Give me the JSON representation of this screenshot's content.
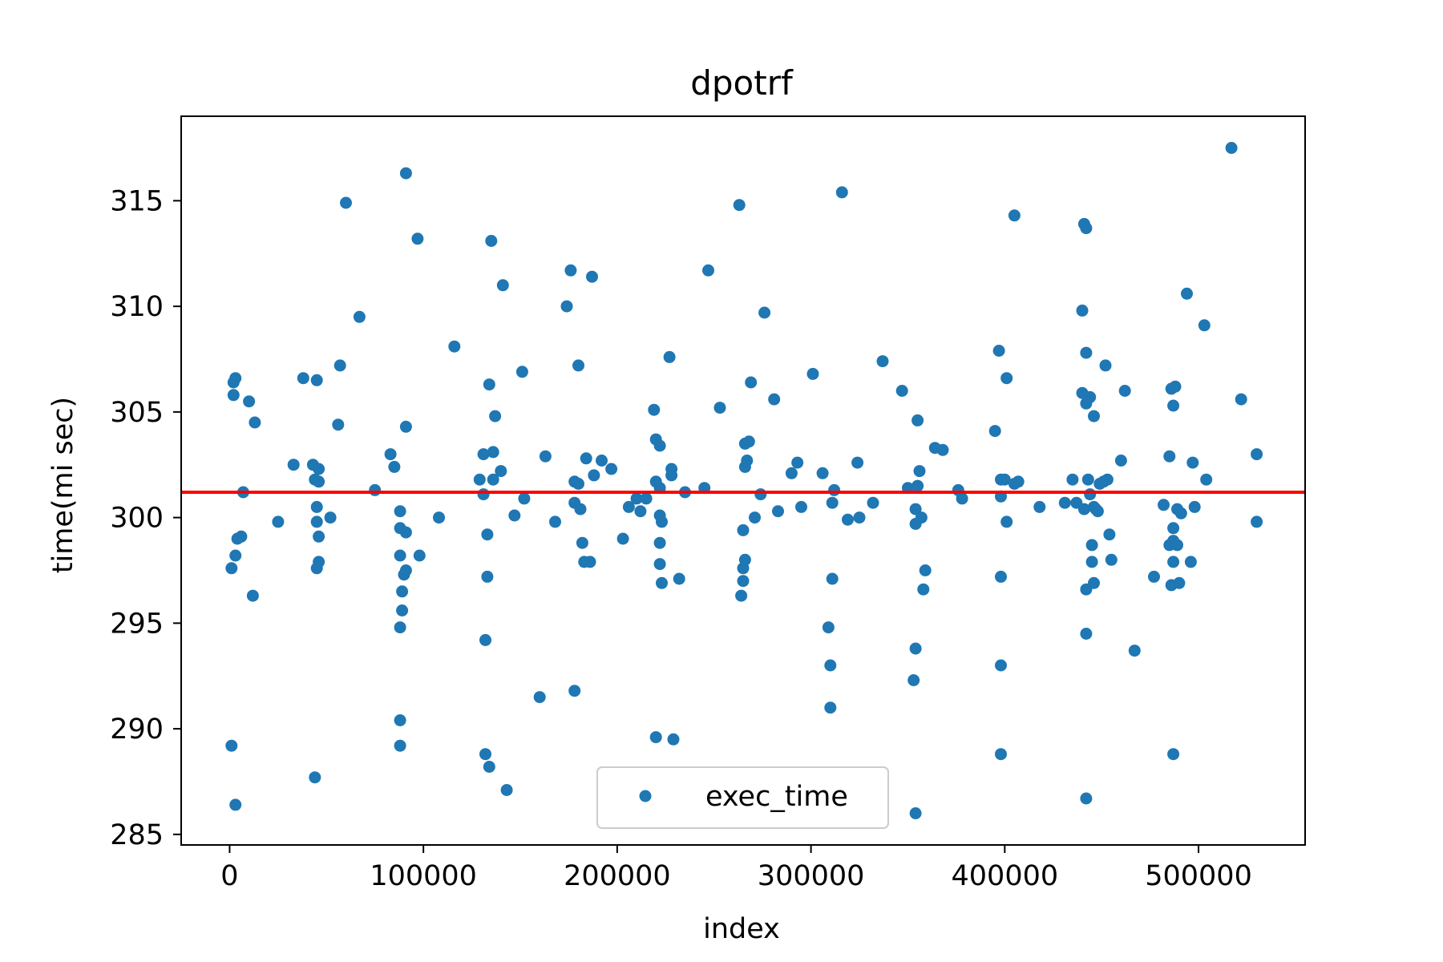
{
  "chart_data": {
    "type": "scatter",
    "title": "dpotrf",
    "xlabel": "index",
    "ylabel": "time(mi sec)",
    "xlim": [
      -25000,
      555000
    ],
    "ylim": [
      284.5,
      319
    ],
    "xticks": [
      0,
      100000,
      200000,
      300000,
      400000,
      500000
    ],
    "xtick_labels": [
      "0",
      "100000",
      "200000",
      "300000",
      "400000",
      "500000"
    ],
    "yticks": [
      285,
      290,
      295,
      300,
      305,
      310,
      315
    ],
    "ytick_labels": [
      "285",
      "290",
      "295",
      "300",
      "305",
      "310",
      "315"
    ],
    "grid": false,
    "legend": {
      "placement": "lower-center",
      "entries": [
        "exec_time"
      ]
    },
    "colors": {
      "points": "#1f77b4",
      "mean_line": "#ff0000"
    },
    "mean_line": {
      "y": 301.2
    },
    "series": [
      {
        "name": "exec_time",
        "points": [
          [
            1000,
            297.6
          ],
          [
            1000,
            289.2
          ],
          [
            2000,
            306.4
          ],
          [
            2000,
            305.8
          ],
          [
            3000,
            306.6
          ],
          [
            3000,
            298.2
          ],
          [
            3000,
            286.4
          ],
          [
            4000,
            299.0
          ],
          [
            6000,
            299.1
          ],
          [
            7000,
            301.2
          ],
          [
            10000,
            305.5
          ],
          [
            12000,
            296.3
          ],
          [
            13000,
            304.5
          ],
          [
            25000,
            299.8
          ],
          [
            33000,
            302.5
          ],
          [
            38000,
            306.6
          ],
          [
            43000,
            302.5
          ],
          [
            44000,
            301.8
          ],
          [
            44000,
            287.7
          ],
          [
            45000,
            306.5
          ],
          [
            45000,
            300.5
          ],
          [
            45000,
            299.8
          ],
          [
            45000,
            297.6
          ],
          [
            46000,
            301.7
          ],
          [
            46000,
            297.9
          ],
          [
            46000,
            299.1
          ],
          [
            46000,
            302.3
          ],
          [
            52000,
            300.0
          ],
          [
            56000,
            304.4
          ],
          [
            57000,
            307.2
          ],
          [
            60000,
            314.9
          ],
          [
            67000,
            309.5
          ],
          [
            75000,
            301.3
          ],
          [
            83000,
            303.0
          ],
          [
            85000,
            302.4
          ],
          [
            88000,
            300.3
          ],
          [
            88000,
            299.5
          ],
          [
            88000,
            298.2
          ],
          [
            89000,
            296.5
          ],
          [
            89000,
            295.6
          ],
          [
            88000,
            294.8
          ],
          [
            88000,
            290.4
          ],
          [
            88000,
            289.2
          ],
          [
            90000,
            297.3
          ],
          [
            91000,
            297.5
          ],
          [
            91000,
            299.3
          ],
          [
            91000,
            304.3
          ],
          [
            91000,
            316.3
          ],
          [
            97000,
            313.2
          ],
          [
            98000,
            298.2
          ],
          [
            108000,
            300.0
          ],
          [
            116000,
            308.1
          ],
          [
            129000,
            301.8
          ],
          [
            131000,
            303.0
          ],
          [
            131000,
            301.1
          ],
          [
            132000,
            294.2
          ],
          [
            132000,
            288.8
          ],
          [
            133000,
            299.2
          ],
          [
            133000,
            297.2
          ],
          [
            134000,
            306.3
          ],
          [
            134000,
            288.2
          ],
          [
            135000,
            313.1
          ],
          [
            136000,
            303.1
          ],
          [
            136000,
            301.8
          ],
          [
            137000,
            304.8
          ],
          [
            140000,
            302.2
          ],
          [
            141000,
            311.0
          ],
          [
            143000,
            287.1
          ],
          [
            147000,
            300.1
          ],
          [
            151000,
            306.9
          ],
          [
            152000,
            300.9
          ],
          [
            160000,
            291.5
          ],
          [
            163000,
            302.9
          ],
          [
            168000,
            299.8
          ],
          [
            174000,
            310.0
          ],
          [
            176000,
            311.7
          ],
          [
            178000,
            301.7
          ],
          [
            178000,
            300.7
          ],
          [
            178000,
            291.8
          ],
          [
            180000,
            307.2
          ],
          [
            180000,
            301.6
          ],
          [
            181000,
            300.4
          ],
          [
            182000,
            298.8
          ],
          [
            183000,
            297.9
          ],
          [
            184000,
            302.8
          ],
          [
            186000,
            297.9
          ],
          [
            187000,
            311.4
          ],
          [
            188000,
            302.0
          ],
          [
            192000,
            302.7
          ],
          [
            197000,
            302.3
          ],
          [
            203000,
            299.0
          ],
          [
            206000,
            300.5
          ],
          [
            210000,
            300.9
          ],
          [
            212000,
            300.3
          ],
          [
            215000,
            300.9
          ],
          [
            219000,
            305.1
          ],
          [
            220000,
            303.7
          ],
          [
            220000,
            301.7
          ],
          [
            220000,
            289.6
          ],
          [
            222000,
            303.4
          ],
          [
            222000,
            301.4
          ],
          [
            222000,
            300.1
          ],
          [
            222000,
            298.8
          ],
          [
            222000,
            297.8
          ],
          [
            223000,
            296.9
          ],
          [
            223000,
            299.8
          ],
          [
            227000,
            307.6
          ],
          [
            228000,
            302.0
          ],
          [
            228000,
            302.3
          ],
          [
            229000,
            289.5
          ],
          [
            232000,
            297.1
          ],
          [
            235000,
            301.2
          ],
          [
            245000,
            301.4
          ],
          [
            247000,
            311.7
          ],
          [
            253000,
            305.2
          ],
          [
            263000,
            314.8
          ],
          [
            264000,
            296.3
          ],
          [
            265000,
            297.0
          ],
          [
            265000,
            297.6
          ],
          [
            265000,
            299.4
          ],
          [
            266000,
            298.0
          ],
          [
            266000,
            303.5
          ],
          [
            266000,
            302.4
          ],
          [
            267000,
            302.7
          ],
          [
            268000,
            303.6
          ],
          [
            269000,
            306.4
          ],
          [
            271000,
            300.0
          ],
          [
            274000,
            301.1
          ],
          [
            276000,
            309.7
          ],
          [
            281000,
            305.6
          ],
          [
            283000,
            300.3
          ],
          [
            290000,
            302.1
          ],
          [
            293000,
            302.6
          ],
          [
            295000,
            300.5
          ],
          [
            301000,
            306.8
          ],
          [
            306000,
            302.1
          ],
          [
            309000,
            294.8
          ],
          [
            310000,
            293.0
          ],
          [
            310000,
            291.0
          ],
          [
            311000,
            300.7
          ],
          [
            311000,
            297.1
          ],
          [
            312000,
            301.3
          ],
          [
            316000,
            315.4
          ],
          [
            319000,
            299.9
          ],
          [
            324000,
            302.6
          ],
          [
            325000,
            300.0
          ],
          [
            332000,
            300.7
          ],
          [
            337000,
            307.4
          ],
          [
            347000,
            306.0
          ],
          [
            350000,
            301.4
          ],
          [
            353000,
            292.3
          ],
          [
            354000,
            299.7
          ],
          [
            354000,
            300.4
          ],
          [
            354000,
            293.8
          ],
          [
            354000,
            286.0
          ],
          [
            355000,
            304.6
          ],
          [
            355000,
            301.5
          ],
          [
            356000,
            302.2
          ],
          [
            357000,
            300.0
          ],
          [
            358000,
            296.6
          ],
          [
            359000,
            297.5
          ],
          [
            364000,
            303.3
          ],
          [
            368000,
            303.2
          ],
          [
            376000,
            301.3
          ],
          [
            378000,
            300.9
          ],
          [
            395000,
            304.1
          ],
          [
            397000,
            307.9
          ],
          [
            398000,
            301.8
          ],
          [
            398000,
            301.0
          ],
          [
            398000,
            297.2
          ],
          [
            398000,
            293.0
          ],
          [
            398000,
            288.8
          ],
          [
            400000,
            301.8
          ],
          [
            401000,
            306.6
          ],
          [
            401000,
            299.8
          ],
          [
            405000,
            301.6
          ],
          [
            405000,
            314.3
          ],
          [
            407000,
            301.7
          ],
          [
            418000,
            300.5
          ],
          [
            431000,
            300.7
          ],
          [
            435000,
            301.8
          ],
          [
            437000,
            300.7
          ],
          [
            440000,
            305.9
          ],
          [
            440000,
            309.8
          ],
          [
            441000,
            313.9
          ],
          [
            441000,
            300.4
          ],
          [
            442000,
            313.7
          ],
          [
            442000,
            307.8
          ],
          [
            442000,
            305.4
          ],
          [
            442000,
            296.6
          ],
          [
            442000,
            294.5
          ],
          [
            442000,
            286.7
          ],
          [
            443000,
            301.8
          ],
          [
            444000,
            305.7
          ],
          [
            444000,
            301.1
          ],
          [
            445000,
            297.9
          ],
          [
            445000,
            298.7
          ],
          [
            446000,
            304.8
          ],
          [
            446000,
            300.5
          ],
          [
            446000,
            296.9
          ],
          [
            447000,
            300.4
          ],
          [
            448000,
            300.3
          ],
          [
            449000,
            301.6
          ],
          [
            451000,
            301.7
          ],
          [
            452000,
            307.2
          ],
          [
            453000,
            301.8
          ],
          [
            454000,
            299.2
          ],
          [
            455000,
            298.0
          ],
          [
            460000,
            302.7
          ],
          [
            462000,
            306.0
          ],
          [
            467000,
            293.7
          ],
          [
            477000,
            297.2
          ],
          [
            482000,
            300.6
          ],
          [
            485000,
            302.9
          ],
          [
            485000,
            298.7
          ],
          [
            486000,
            296.8
          ],
          [
            486000,
            306.1
          ],
          [
            487000,
            305.3
          ],
          [
            487000,
            299.5
          ],
          [
            487000,
            298.9
          ],
          [
            487000,
            297.9
          ],
          [
            487000,
            288.8
          ],
          [
            488000,
            306.2
          ],
          [
            489000,
            298.7
          ],
          [
            489000,
            300.4
          ],
          [
            490000,
            296.9
          ],
          [
            491000,
            300.2
          ],
          [
            494000,
            310.6
          ],
          [
            496000,
            297.9
          ],
          [
            497000,
            302.6
          ],
          [
            498000,
            300.5
          ],
          [
            503000,
            309.1
          ],
          [
            504000,
            301.8
          ],
          [
            517000,
            317.5
          ],
          [
            522000,
            305.6
          ],
          [
            530000,
            303.0
          ],
          [
            530000,
            299.8
          ]
        ]
      }
    ]
  }
}
